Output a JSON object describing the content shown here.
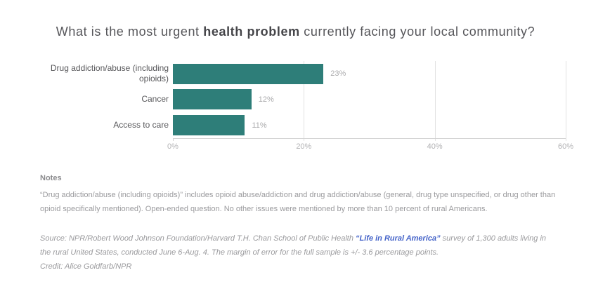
{
  "title": {
    "pre": "What is the most urgent ",
    "bold": "health problem",
    "post": " currently facing your local community?"
  },
  "chart_data": {
    "type": "bar",
    "orientation": "horizontal",
    "categories": [
      "Drug addiction/abuse (including opioids)",
      "Cancer",
      "Access to care"
    ],
    "values": [
      23,
      12,
      11
    ],
    "value_labels": [
      "23%",
      "12%",
      "11%"
    ],
    "x_ticks": [
      0,
      20,
      40,
      60
    ],
    "x_tick_labels": [
      "0%",
      "20%",
      "40%",
      "60%"
    ],
    "xlim": [
      0,
      60
    ],
    "bar_color": "#2e7e79",
    "grid": "vertical gridlines at 20/40/60, light gray",
    "legend": "none"
  },
  "notes": {
    "heading": "Notes",
    "body": "“Drug addiction/abuse (including opioids)” includes opioid abuse/addiction and drug addiction/abuse (general, drug type unspecified, or drug other than opioid specifically mentioned). Open-ended question. No other issues were mentioned by more than 10 percent of rural Americans."
  },
  "source": {
    "prefix": "Source: NPR/Robert Wood Johnson Foundation/Harvard T.H. Chan School of Public Health ",
    "link_text": "“Life in Rural America”",
    "link_color": "#4362c8",
    "suffix": " survey of 1,300 adults living in the rural United States, conducted June 6-Aug. 4. The margin of error for the full sample is +/- 3.6 percentage points.",
    "credit": "Credit: Alice Goldfarb/NPR"
  }
}
